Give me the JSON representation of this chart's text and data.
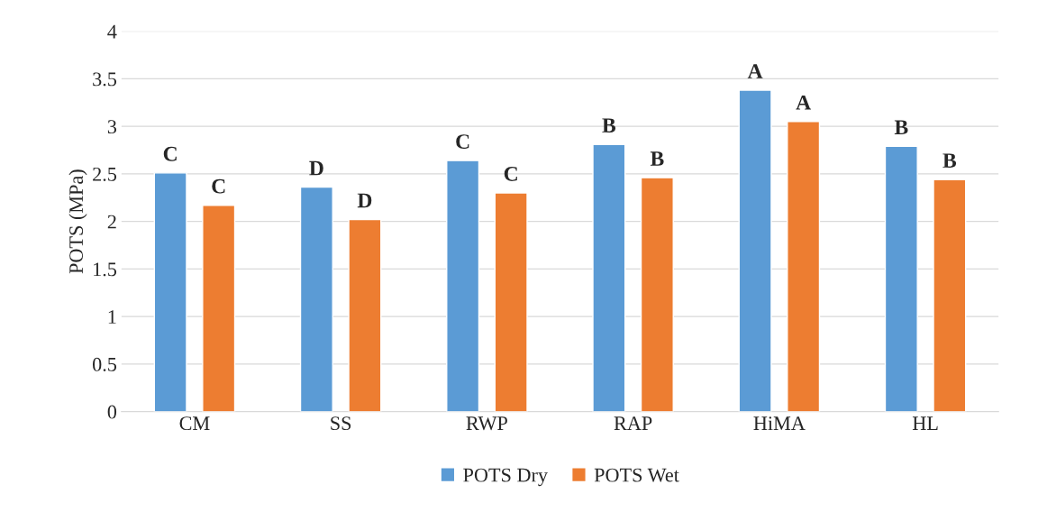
{
  "chart_data": {
    "type": "bar",
    "ylabel": "POTS (MPa)",
    "categories": [
      "CM",
      "SS",
      "RWP",
      "RAP",
      "HiMA",
      "HL"
    ],
    "series": [
      {
        "name": "POTS Dry",
        "color": "#5b9bd5",
        "values": [
          2.51,
          2.36,
          2.64,
          2.81,
          3.38,
          2.79
        ],
        "value_labels": [
          "C",
          "D",
          "C",
          "B",
          "A",
          "B"
        ]
      },
      {
        "name": "POTS Wet",
        "color": "#ed7d31",
        "values": [
          2.17,
          2.02,
          2.3,
          2.46,
          3.05,
          2.44
        ],
        "value_labels": [
          "C",
          "D",
          "C",
          "B",
          "A",
          "B"
        ]
      }
    ],
    "ylim": [
      0,
      4
    ],
    "yticks": [
      0,
      0.5,
      1,
      1.5,
      2,
      2.5,
      3,
      3.5,
      4
    ],
    "grid": "y",
    "legend": "bottom"
  }
}
